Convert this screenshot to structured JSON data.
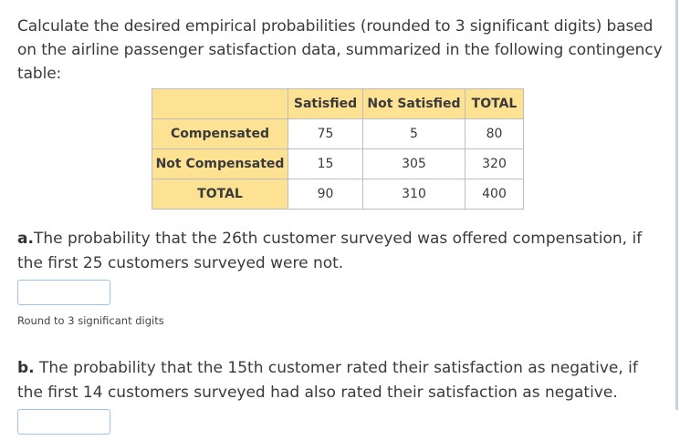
{
  "intro": "Calculate the desired empirical probabilities (rounded to 3 significant digits) based on the airline passenger satisfaction data, summarized in the following contingency table:",
  "table": {
    "columns": [
      "",
      "Satisfied",
      "Not Satisfied",
      "TOTAL"
    ],
    "rows": [
      {
        "label": "Compensated",
        "values": [
          "75",
          "5",
          "80"
        ]
      },
      {
        "label": "Not Compensated",
        "values": [
          "15",
          "305",
          "320"
        ]
      },
      {
        "label": "TOTAL",
        "values": [
          "90",
          "310",
          "400"
        ]
      }
    ]
  },
  "question_a": {
    "letter": "a.",
    "text": "The probability that the 26th customer surveyed was offered compensation, if the first 25 customers surveyed were not.",
    "answer_value": "",
    "hint": "Round to 3 significant digits"
  },
  "question_b": {
    "letter": "b.",
    "text": " The probability that the 15th customer rated their satisfaction as negative, if the first 14 customers surveyed had also rated their satisfaction as negative.",
    "answer_value": ""
  }
}
